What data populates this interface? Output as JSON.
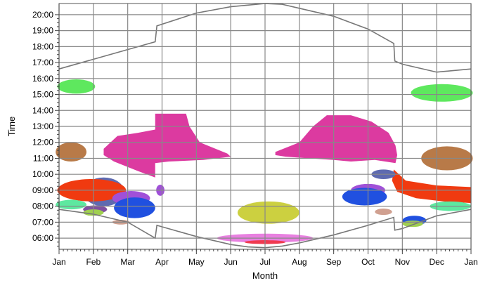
{
  "chart_data": {
    "type": "area",
    "xlabel": "Month",
    "ylabel": "Time",
    "x_ticks": [
      "Jan",
      "Feb",
      "Mar",
      "Apr",
      "May",
      "Jun",
      "Jul",
      "Aug",
      "Sep",
      "Oct",
      "Nov",
      "Dec",
      "Jan"
    ],
    "y_ticks": [
      "06:00",
      "07:00",
      "08:00",
      "09:00",
      "10:00",
      "11:00",
      "12:00",
      "13:00",
      "14:00",
      "15:00",
      "16:00",
      "17:00",
      "18:00",
      "19:00",
      "20:00"
    ],
    "ylim": [
      5.3,
      20.7
    ],
    "xlim": [
      0,
      12
    ],
    "grid": true,
    "sunset_line": [
      [
        0,
        16.6
      ],
      [
        2.8,
        18.3
      ],
      [
        2.85,
        19.3
      ],
      [
        4,
        20.1
      ],
      [
        5,
        20.5
      ],
      [
        5.5,
        20.6
      ],
      [
        6,
        20.7
      ],
      [
        6.5,
        20.65
      ],
      [
        7,
        20.4
      ],
      [
        8,
        19.9
      ],
      [
        9,
        19.1
      ],
      [
        9.75,
        18.2
      ],
      [
        9.78,
        17.1
      ],
      [
        10,
        16.9
      ],
      [
        11,
        16.4
      ],
      [
        11.5,
        16.5
      ],
      [
        12,
        16.6
      ]
    ],
    "sunrise_line": [
      [
        0,
        7.8
      ],
      [
        1,
        7.5
      ],
      [
        2,
        7.0
      ],
      [
        2.8,
        6.0
      ],
      [
        2.85,
        6.8
      ],
      [
        4,
        6.1
      ],
      [
        5,
        5.6
      ],
      [
        5.5,
        5.45
      ],
      [
        6,
        5.4
      ],
      [
        6.5,
        5.5
      ],
      [
        7,
        5.7
      ],
      [
        8,
        6.2
      ],
      [
        9,
        6.8
      ],
      [
        9.75,
        7.3
      ],
      [
        9.78,
        6.5
      ],
      [
        10,
        6.6
      ],
      [
        11,
        7.4
      ],
      [
        12,
        7.8
      ]
    ],
    "blobs": [
      {
        "color": "#5ee85e",
        "ellipse": [
          0.5,
          15.5,
          0.55,
          0.45
        ]
      },
      {
        "color": "#5ee85e",
        "ellipse": [
          11.15,
          15.1,
          0.9,
          0.55
        ]
      },
      {
        "color": "#b87a48",
        "ellipse": [
          0.35,
          11.4,
          0.45,
          0.6
        ]
      },
      {
        "color": "#b87a48",
        "ellipse": [
          11.3,
          11.0,
          0.75,
          0.75
        ]
      },
      {
        "color": "#dc3aa0",
        "polygon": [
          [
            1.3,
            11.6
          ],
          [
            1.7,
            12.4
          ],
          [
            2.3,
            12.6
          ],
          [
            2.8,
            12.8
          ],
          [
            2.8,
            13.8
          ],
          [
            3.7,
            13.8
          ],
          [
            3.8,
            13.0
          ],
          [
            4.1,
            12.0
          ],
          [
            4.9,
            11.3
          ],
          [
            5.0,
            11.1
          ],
          [
            4.2,
            10.9
          ],
          [
            3.2,
            10.8
          ],
          [
            2.8,
            10.7
          ],
          [
            2.8,
            9.8
          ],
          [
            2.3,
            10.2
          ],
          [
            1.6,
            10.8
          ],
          [
            1.3,
            11.2
          ]
        ]
      },
      {
        "color": "#dc3aa0",
        "polygon": [
          [
            6.3,
            11.4
          ],
          [
            7.0,
            12.0
          ],
          [
            7.4,
            13.0
          ],
          [
            7.8,
            13.7
          ],
          [
            8.5,
            13.7
          ],
          [
            9.1,
            13.3
          ],
          [
            9.6,
            12.6
          ],
          [
            9.8,
            11.8
          ],
          [
            9.85,
            11.2
          ],
          [
            9.8,
            10.7
          ],
          [
            9.2,
            10.9
          ],
          [
            8.5,
            10.8
          ],
          [
            8.0,
            10.9
          ],
          [
            7.3,
            11.0
          ],
          [
            6.6,
            11.1
          ],
          [
            6.3,
            11.2
          ]
        ]
      },
      {
        "color": "#5e6ab0",
        "ellipse": [
          1.3,
          8.9,
          0.6,
          0.9
        ]
      },
      {
        "color": "#f03a10",
        "ellipse": [
          0.95,
          9.0,
          1.0,
          0.7
        ]
      },
      {
        "color": "#f03a10",
        "polygon": [
          [
            9.75,
            10.3
          ],
          [
            10.1,
            9.6
          ],
          [
            11.0,
            9.3
          ],
          [
            12,
            9.2
          ],
          [
            12,
            8.2
          ],
          [
            11.2,
            8.3
          ],
          [
            10.4,
            8.5
          ],
          [
            9.85,
            8.9
          ],
          [
            9.7,
            9.6
          ]
        ]
      },
      {
        "color": "#a050d8",
        "ellipse": [
          2.1,
          8.5,
          0.55,
          0.45
        ]
      },
      {
        "color": "#a050d8",
        "ellipse": [
          2.95,
          9.0,
          0.12,
          0.35
        ]
      },
      {
        "color": "#a050d8",
        "ellipse": [
          9.0,
          9.0,
          0.5,
          0.4
        ]
      },
      {
        "color": "#2050e0",
        "ellipse": [
          2.2,
          7.9,
          0.6,
          0.65
        ]
      },
      {
        "color": "#2050e0",
        "ellipse": [
          8.9,
          8.6,
          0.65,
          0.55
        ]
      },
      {
        "color": "#2050e0",
        "ellipse": [
          10.35,
          7.1,
          0.35,
          0.3
        ]
      },
      {
        "color": "#5e6ab0",
        "ellipse": [
          9.45,
          10.0,
          0.35,
          0.3
        ]
      },
      {
        "color": "#5ee8a0",
        "ellipse": [
          0.35,
          8.1,
          0.45,
          0.3
        ]
      },
      {
        "color": "#5ee8a0",
        "ellipse": [
          11.4,
          8.0,
          0.6,
          0.3
        ]
      },
      {
        "color": "#8050a0",
        "ellipse": [
          1.05,
          7.8,
          0.35,
          0.25
        ]
      },
      {
        "color": "#a0d050",
        "ellipse": [
          1.0,
          7.6,
          0.3,
          0.2
        ]
      },
      {
        "color": "#a0d050",
        "ellipse": [
          10.3,
          6.9,
          0.3,
          0.2
        ]
      },
      {
        "color": "#d0a090",
        "ellipse": [
          1.8,
          7.0,
          0.25,
          0.15
        ]
      },
      {
        "color": "#d0a090",
        "ellipse": [
          9.45,
          7.65,
          0.25,
          0.2
        ]
      },
      {
        "color": "#ccd040",
        "ellipse": [
          6.1,
          7.6,
          0.9,
          0.7
        ]
      },
      {
        "color": "#e880e0",
        "ellipse": [
          6.0,
          6.0,
          1.4,
          0.28
        ]
      },
      {
        "color": "#f03a50",
        "ellipse": [
          6.0,
          5.75,
          0.6,
          0.12
        ]
      }
    ]
  }
}
